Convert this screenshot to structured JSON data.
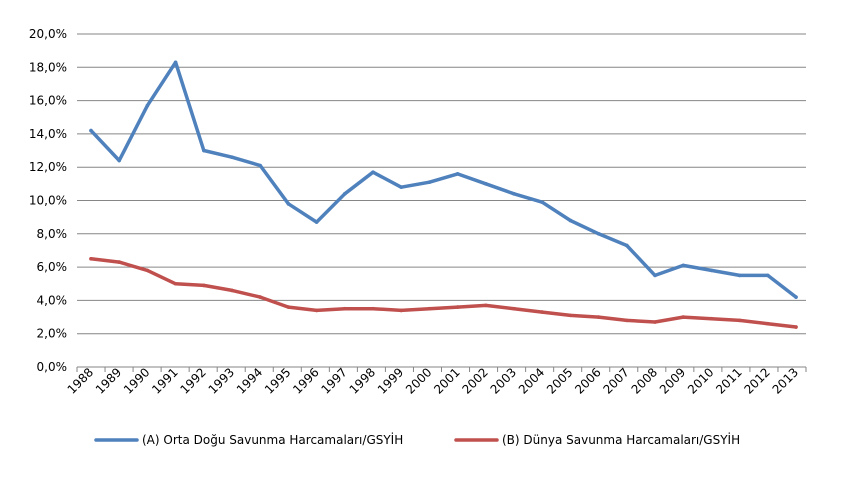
{
  "chart_data": {
    "type": "line",
    "categories": [
      "1988",
      "1989",
      "1990",
      "1991",
      "1992",
      "1993",
      "1994",
      "1995",
      "1996",
      "1997",
      "1998",
      "1999",
      "2000",
      "2001",
      "2002",
      "2003",
      "2004",
      "2005",
      "2006",
      "2007",
      "2008",
      "2009",
      "2010",
      "2011",
      "2012",
      "2013"
    ],
    "ylim": [
      0,
      20
    ],
    "y_ticks": [
      {
        "value": 0,
        "label": "0,0%"
      },
      {
        "value": 2,
        "label": "2,0%"
      },
      {
        "value": 4,
        "label": "4,0%"
      },
      {
        "value": 6,
        "label": "6,0%"
      },
      {
        "value": 8,
        "label": "8,0%"
      },
      {
        "value": 10,
        "label": "10,0%"
      },
      {
        "value": 12,
        "label": "12,0%"
      },
      {
        "value": 14,
        "label": "14,0%"
      },
      {
        "value": 16,
        "label": "16,0%"
      },
      {
        "value": 18,
        "label": "18,0%"
      },
      {
        "value": 20,
        "label": "20,0%"
      }
    ],
    "grid": true,
    "legend_position": "bottom",
    "series": [
      {
        "name": "(A) Orta Doğu Savunma Harcamaları/GSYİH",
        "color": "#4F81BD",
        "values": [
          14.2,
          12.4,
          15.7,
          18.3,
          13.0,
          12.6,
          12.1,
          9.8,
          8.7,
          10.4,
          11.7,
          10.8,
          11.1,
          11.6,
          11.0,
          10.4,
          9.9,
          8.8,
          8.0,
          7.3,
          5.5,
          6.1,
          5.8,
          5.5,
          5.5,
          4.2
        ]
      },
      {
        "name": "(B) Dünya Savunma Harcamaları/GSYİH",
        "color": "#C0504D",
        "values": [
          6.5,
          6.3,
          5.8,
          5.0,
          4.9,
          4.6,
          4.2,
          3.6,
          3.4,
          3.5,
          3.5,
          3.4,
          3.5,
          3.6,
          3.7,
          3.5,
          3.3,
          3.1,
          3.0,
          2.8,
          2.7,
          3.0,
          2.9,
          2.8,
          2.6,
          2.4
        ]
      }
    ]
  }
}
